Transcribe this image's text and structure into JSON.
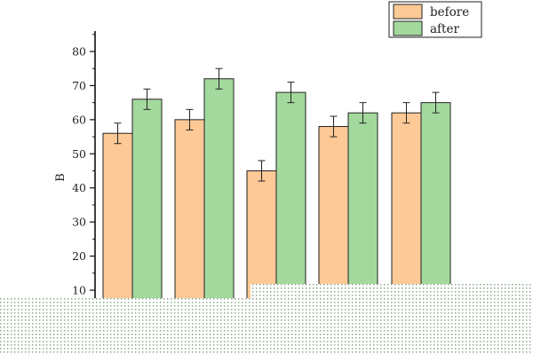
{
  "chart_data": {
    "type": "bar",
    "title": "",
    "xlabel": "",
    "ylabel": "B",
    "ylim": [
      8,
      86
    ],
    "yticks": [
      10,
      20,
      30,
      40,
      50,
      60,
      70,
      80
    ],
    "categories": [
      "",
      "",
      "",
      "",
      ""
    ],
    "series": [
      {
        "name": "before",
        "color": "#fdc996",
        "values": [
          56,
          60,
          45,
          58,
          62
        ],
        "errors": [
          3,
          3,
          3,
          3,
          3
        ]
      },
      {
        "name": "after",
        "color": "#a3d99d",
        "values": [
          66,
          72,
          68,
          62,
          65
        ],
        "errors": [
          3,
          3,
          3,
          3,
          3
        ]
      }
    ],
    "legend": "top-right",
    "grid": false,
    "overlay_pattern_color": "#8fb58f"
  }
}
